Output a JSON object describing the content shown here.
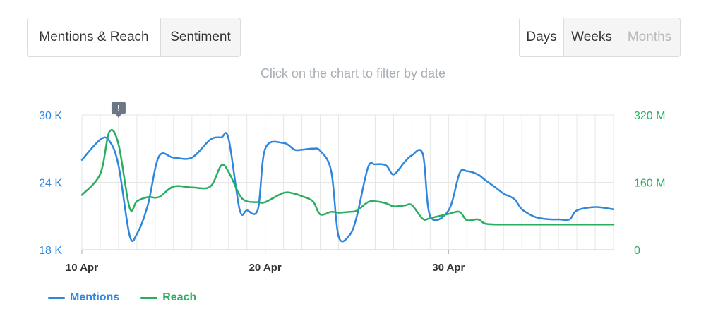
{
  "view_toggle": {
    "items": [
      {
        "label": "Mentions & Reach",
        "active": true
      },
      {
        "label": "Sentiment",
        "active": false
      }
    ]
  },
  "period_toggle": {
    "items": [
      {
        "label": "Days",
        "active": true,
        "disabled": false
      },
      {
        "label": "Weeks",
        "active": false,
        "disabled": false
      },
      {
        "label": "Months",
        "active": false,
        "disabled": true
      }
    ]
  },
  "hint": "Click on the chart to filter by date",
  "colors": {
    "mentions": "#2e86de",
    "reach": "#27ae60",
    "grid": "#e6e6e6",
    "marker": "#6b7785"
  },
  "chart_data": {
    "type": "line",
    "x_label_dates": [
      "10 Apr",
      "20 Apr",
      "30 Apr"
    ],
    "x_day_start": 10,
    "x_day_end": 39,
    "grid": true,
    "legend_position": "bottom-left",
    "y_left": {
      "ticks": [
        "30 K",
        "24 K",
        "18 K"
      ],
      "min": 18000,
      "max": 30000
    },
    "y_right": {
      "ticks": [
        "320 M",
        "160 M",
        "0"
      ],
      "min": 0,
      "max": 320000000
    },
    "annotation_marker": {
      "x": 12,
      "symbol": "!",
      "icon": "alert-icon"
    },
    "series": [
      {
        "name": "Mentions",
        "axis": "left",
        "color": "#2e86de",
        "x": [
          10,
          11,
          11.5,
          12,
          12.6,
          13,
          13.6,
          14.2,
          15,
          16,
          17,
          17.6,
          18,
          18.6,
          19,
          19.6,
          20,
          21,
          21.6,
          22,
          22.6,
          23,
          23.6,
          24,
          24.6,
          25,
          25.6,
          26,
          26.6,
          27,
          27.6,
          28,
          28.6,
          29,
          30,
          30.6,
          31,
          31.6,
          32,
          32.6,
          33,
          33.6,
          34,
          34.6,
          35,
          35.6,
          36,
          36.6,
          37,
          38,
          39
        ],
        "y": [
          26000,
          27800,
          27700,
          25500,
          19300,
          19400,
          22000,
          26300,
          26200,
          26200,
          27800,
          28000,
          27900,
          21600,
          21500,
          21600,
          27000,
          27500,
          26900,
          26900,
          27000,
          26800,
          25000,
          19200,
          19300,
          21000,
          25300,
          25600,
          25500,
          24700,
          25800,
          26400,
          26500,
          21000,
          21500,
          24800,
          25000,
          24700,
          24200,
          23500,
          23000,
          22500,
          21600,
          21000,
          20800,
          20700,
          20700,
          20700,
          21500,
          21800,
          21600
        ]
      },
      {
        "name": "Reach",
        "axis": "right",
        "color": "#27ae60",
        "x": [
          10,
          11,
          11.5,
          12,
          12.6,
          13,
          13.6,
          14.2,
          15,
          16,
          17,
          17.6,
          18,
          18.6,
          19,
          19.6,
          20,
          21,
          21.6,
          22,
          22.6,
          23,
          23.6,
          24,
          24.6,
          25,
          25.6,
          26,
          26.6,
          27,
          27.6,
          28,
          28.6,
          29,
          30,
          30.6,
          31,
          31.6,
          32,
          32.6,
          33,
          33.6,
          34,
          34.6,
          35,
          35.6,
          36,
          36.6,
          37,
          38,
          39
        ],
        "y": [
          130000000,
          180000000,
          280000000,
          250000000,
          100000000,
          115000000,
          125000000,
          125000000,
          150000000,
          148000000,
          150000000,
          200000000,
          185000000,
          130000000,
          115000000,
          113000000,
          113000000,
          135000000,
          133000000,
          127000000,
          115000000,
          84000000,
          90000000,
          88000000,
          90000000,
          93000000,
          113000000,
          115000000,
          110000000,
          103000000,
          105000000,
          106000000,
          73000000,
          75000000,
          85000000,
          90000000,
          70000000,
          72000000,
          62000000,
          60000000,
          60000000,
          60000000,
          60000000,
          60000000,
          60000000,
          60000000,
          60000000,
          60000000,
          60000000,
          60000000,
          60000000
        ]
      }
    ]
  }
}
